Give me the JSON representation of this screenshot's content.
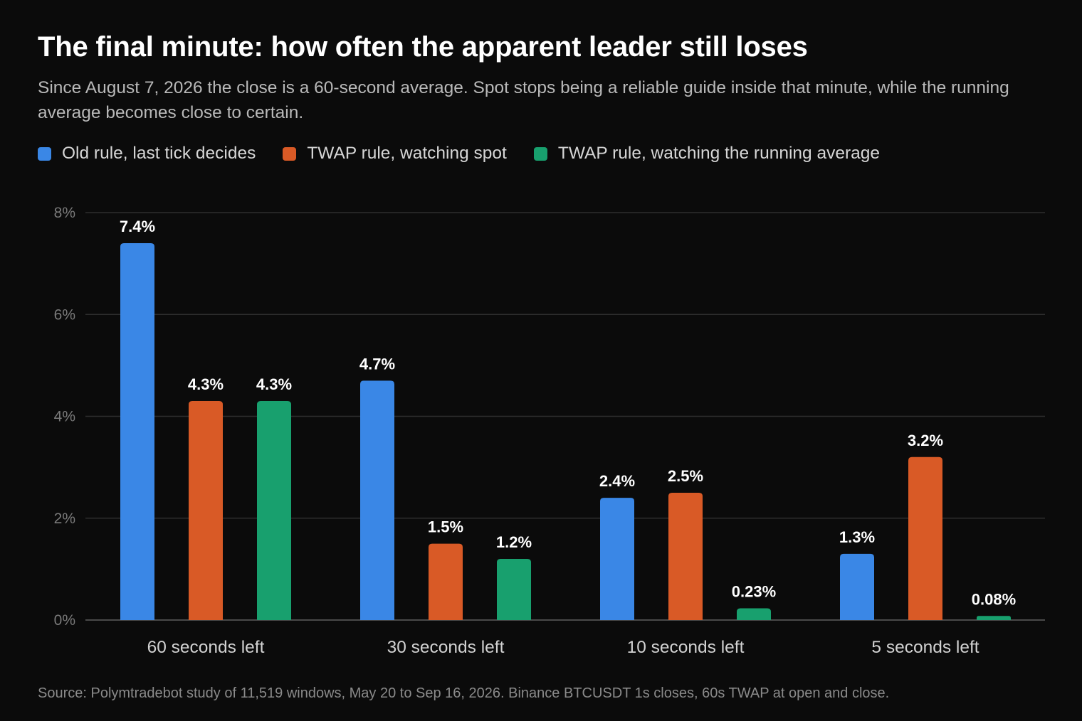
{
  "chart_data": {
    "type": "bar",
    "title": "The final minute: how often the apparent leader still loses",
    "subtitle": "Since August 7, 2026 the close is a 60-second average. Spot stops being a reliable guide inside that minute, while the running average becomes close to certain.",
    "categories": [
      "60 seconds left",
      "30 seconds left",
      "10 seconds left",
      "5 seconds left"
    ],
    "series": [
      {
        "name": "Old rule, last tick decides",
        "color": "#3a87e6",
        "values": [
          7.4,
          4.7,
          2.4,
          1.3
        ],
        "labels": [
          "7.4%",
          "4.7%",
          "2.4%",
          "1.3%"
        ]
      },
      {
        "name": "TWAP rule, watching spot",
        "color": "#d95a26",
        "values": [
          4.3,
          1.5,
          2.5,
          3.2
        ],
        "labels": [
          "4.3%",
          "1.5%",
          "2.5%",
          "3.2%"
        ]
      },
      {
        "name": "TWAP rule, watching the running average",
        "color": "#18a06e",
        "values": [
          4.3,
          1.2,
          0.23,
          0.08
        ],
        "labels": [
          "4.3%",
          "1.2%",
          "0.23%",
          "0.08%"
        ]
      }
    ],
    "ylim": [
      0,
      8
    ],
    "yticks": [
      0,
      2,
      4,
      6,
      8
    ],
    "ytick_labels": [
      "0%",
      "2%",
      "4%",
      "6%",
      "8%"
    ],
    "xlabel": "",
    "ylabel": "",
    "grid": true,
    "legend_position": "top-left",
    "source": "Source: Polymtradebot study of 11,519 windows, May 20 to Sep 16, 2026. Binance BTCUSDT 1s closes, 60s TWAP at open and close."
  }
}
